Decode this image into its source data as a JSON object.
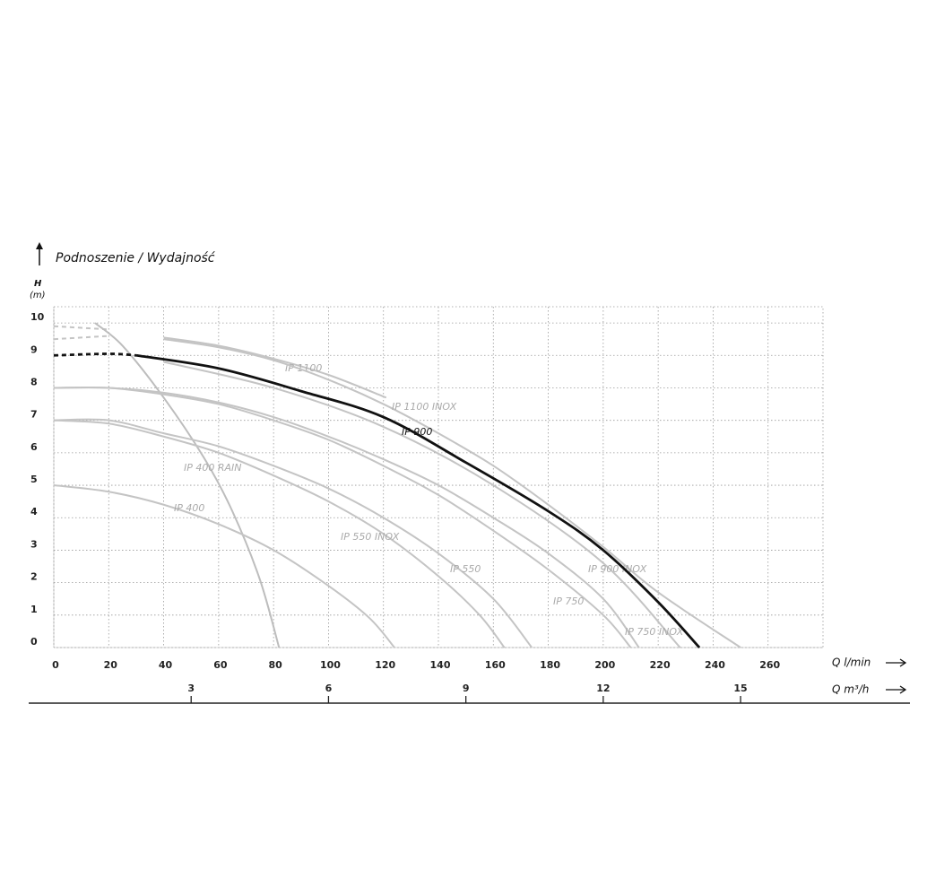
{
  "chart_data": {
    "type": "line",
    "title": "Podnoszenie / Wydajność",
    "y_label": "H",
    "y_unit": "(m)",
    "x_label": "Q l/min",
    "x2_label": "Q m³/h",
    "xlim": [
      0,
      280
    ],
    "xticks": [
      0,
      20,
      40,
      60,
      80,
      100,
      120,
      140,
      160,
      180,
      200,
      220,
      240,
      260
    ],
    "x2lim": [
      0,
      16.8
    ],
    "x2ticks": [
      3,
      6,
      9,
      12,
      15
    ],
    "ylim": [
      0,
      10.5
    ],
    "yticks": [
      0,
      1,
      2,
      3,
      4,
      5,
      6,
      7,
      8,
      9,
      10
    ],
    "grid": true,
    "series": [
      {
        "name": "IP 1100",
        "color": "#c4c4c4",
        "dash_to": 30,
        "x": [
          0,
          20,
          40,
          60,
          80,
          100,
          121
        ],
        "values": [
          9.9,
          9.8,
          9.55,
          9.3,
          8.9,
          8.4,
          7.7
        ]
      },
      {
        "name": "IP 1100 INOX",
        "color": "#c4c4c4",
        "dash_to": 30,
        "x": [
          0,
          20,
          40,
          60,
          80,
          100,
          120,
          140,
          160,
          180,
          200,
          220,
          250
        ],
        "values": [
          9.5,
          9.6,
          9.5,
          9.25,
          8.85,
          8.25,
          7.5,
          6.6,
          5.6,
          4.4,
          3.1,
          1.7,
          0
        ]
      },
      {
        "name": "IP 900 INOX",
        "color": "#c4c4c4",
        "dash_to": 30,
        "x": [
          0,
          40,
          80,
          120,
          160,
          200,
          228
        ],
        "values": [
          9.0,
          8.8,
          8.0,
          6.8,
          5.0,
          2.6,
          0
        ]
      },
      {
        "name": "IP 400 RAIN",
        "color": "#bdbdbd",
        "dash_to": 0,
        "x": [
          15,
          25,
          40,
          55,
          65,
          75,
          82
        ],
        "values": [
          10.0,
          9.3,
          7.7,
          5.8,
          4.2,
          2.1,
          0
        ]
      },
      {
        "name": "IP 400",
        "color": "#c4c4c4",
        "dash_to": 0,
        "x": [
          0,
          20,
          40,
          60,
          80,
          100,
          115,
          124
        ],
        "values": [
          5.0,
          4.8,
          4.4,
          3.8,
          3.0,
          1.9,
          0.9,
          0
        ]
      },
      {
        "name": "IP 550 INOX",
        "color": "#c4c4c4",
        "dash_to": 0,
        "x": [
          0,
          20,
          40,
          60,
          80,
          100,
          120,
          140,
          155,
          164
        ],
        "values": [
          7.0,
          6.9,
          6.5,
          6.0,
          5.3,
          4.5,
          3.5,
          2.2,
          1.0,
          0
        ]
      },
      {
        "name": "IP 550",
        "color": "#c4c4c4",
        "dash_to": 0,
        "x": [
          0,
          20,
          40,
          60,
          80,
          100,
          120,
          140,
          160,
          174
        ],
        "values": [
          7.0,
          7.0,
          6.6,
          6.2,
          5.6,
          4.9,
          4.0,
          2.9,
          1.5,
          0
        ]
      },
      {
        "name": "IP 750",
        "color": "#c4c4c4",
        "dash_to": 0,
        "x": [
          0,
          20,
          40,
          60,
          80,
          100,
          120,
          140,
          160,
          180,
          200,
          210
        ],
        "values": [
          8.0,
          8.0,
          7.8,
          7.5,
          7.0,
          6.4,
          5.6,
          4.7,
          3.6,
          2.4,
          1.0,
          0
        ]
      },
      {
        "name": "IP 750 INOX",
        "color": "#c4c4c4",
        "dash_to": 0,
        "x": [
          0,
          20,
          40,
          60,
          80,
          100,
          120,
          140,
          160,
          180,
          200,
          213
        ],
        "values": [
          8.0,
          8.0,
          7.85,
          7.55,
          7.1,
          6.5,
          5.8,
          5.0,
          4.0,
          2.9,
          1.5,
          0
        ]
      },
      {
        "name": "IP 900",
        "color": "#111111",
        "dash_to": 30,
        "x": [
          0,
          20,
          30,
          60,
          90,
          120,
          150,
          180,
          200,
          220,
          235
        ],
        "values": [
          9.0,
          9.05,
          9.0,
          8.6,
          7.9,
          7.1,
          5.7,
          4.2,
          3.0,
          1.4,
          0
        ]
      }
    ]
  }
}
